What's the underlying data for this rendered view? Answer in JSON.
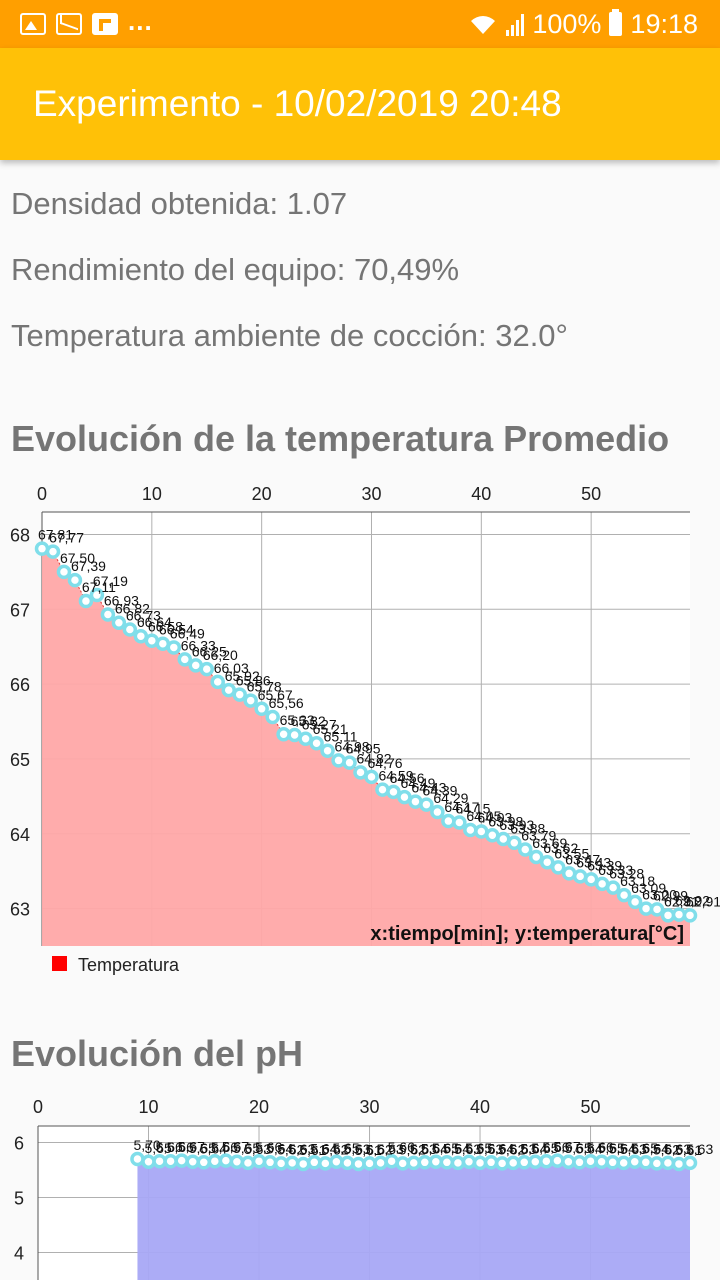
{
  "status_bar": {
    "notification_icons": [
      "image-icon",
      "mail-icon",
      "flipboard-icon"
    ],
    "more": "...",
    "battery": "100%",
    "time": "19:18"
  },
  "app_bar": {
    "title": "Experimento - 10/02/2019 20:48"
  },
  "summary": {
    "density": "Densidad obtenida: 1.07",
    "efficiency": "Rendimiento del equipo: 70,49%",
    "ambient_temp": "Temperatura ambiente de cocción: 32.0°"
  },
  "charts": {
    "temperature_title": "Evolución de la temperatura Promedio",
    "ph_title": "Evolución del pH"
  },
  "chart_data": [
    {
      "type": "area",
      "title": "Evolución de la temperatura Promedio",
      "description": "x:tiempo[min]; y:temperatura[°C]",
      "legend": [
        "Temperatura"
      ],
      "legend_position": "bottom-left",
      "grid": true,
      "xlim": [
        0,
        59
      ],
      "ylim": [
        62.5,
        68.3
      ],
      "x_ticks": [
        0,
        10,
        20,
        30,
        40,
        50
      ],
      "y_ticks": [
        63,
        64,
        65,
        66,
        67,
        68
      ],
      "fill_color": "#ffa8a8",
      "line_color": "#e53935",
      "point_color": "#80deea",
      "series": [
        {
          "name": "Temperatura",
          "x": [
            0,
            1,
            2,
            3,
            4,
            5,
            6,
            7,
            8,
            9,
            10,
            11,
            12,
            13,
            14,
            15,
            16,
            17,
            18,
            19,
            20,
            21,
            22,
            23,
            24,
            25,
            26,
            27,
            28,
            29,
            30,
            31,
            32,
            33,
            34,
            35,
            36,
            37,
            38,
            39,
            40,
            41,
            42,
            43,
            44,
            45,
            46,
            47,
            48,
            49,
            50,
            51,
            52,
            53,
            54,
            55,
            56,
            57,
            58,
            59
          ],
          "values": [
            67.81,
            67.77,
            67.5,
            67.39,
            67.11,
            67.19,
            66.93,
            66.82,
            66.73,
            66.64,
            66.58,
            66.54,
            66.49,
            66.33,
            66.25,
            66.2,
            66.03,
            65.92,
            65.86,
            65.78,
            65.67,
            65.56,
            65.33,
            65.32,
            65.27,
            65.21,
            65.11,
            64.98,
            64.95,
            64.82,
            64.76,
            64.59,
            64.56,
            64.49,
            64.43,
            64.39,
            64.29,
            64.17,
            64.15,
            64.05,
            64.03,
            63.98,
            63.93,
            63.88,
            63.79,
            63.69,
            63.62,
            63.55,
            63.47,
            63.43,
            63.39,
            63.33,
            63.28,
            63.18,
            63.09,
            63.0,
            62.99,
            62.91,
            62.92,
            62.91
          ],
          "labels": [
            "67,81",
            "67,77",
            "67,50",
            "67,39",
            "67,11",
            "67,19",
            "66,93",
            "66,82",
            "66,73",
            "66,64",
            "66,58",
            "66,54",
            "66,49",
            "66,33",
            "66,25",
            "66,20",
            "66,03",
            "65,92",
            "65,86",
            "65,78",
            "65,67",
            "65,56",
            "65,33",
            "65,32",
            "65,27",
            "65,21",
            "65,11",
            "64,98",
            "64,95",
            "64,82",
            "64,76",
            "64,59",
            "64,56",
            "64,49",
            "64,43",
            "64,39",
            "64,29",
            "64,17",
            "64,15",
            "64,05",
            "64,03",
            "63,98",
            "63,93",
            "63,88",
            "63,79",
            "63,69",
            "63,62",
            "63,55",
            "63,47",
            "63,43",
            "63,39",
            "63,33",
            "63,28",
            "63,18",
            "63,09",
            "63,00",
            "62,99",
            "62,91",
            "62,92",
            "62,91"
          ]
        }
      ]
    },
    {
      "type": "area",
      "title": "Evolución del pH",
      "grid": true,
      "xlim": [
        0,
        59
      ],
      "ylim": [
        3.5,
        6.3
      ],
      "x_ticks": [
        0,
        10,
        20,
        30,
        40,
        50
      ],
      "y_ticks": [
        4,
        5,
        6
      ],
      "fill_color": "#a8a8f5",
      "line_color": "#3f51b5",
      "point_color": "#80deea",
      "series": [
        {
          "x": [
            9,
            10,
            11,
            12,
            13,
            14,
            15,
            16,
            17,
            18,
            19,
            20,
            21,
            22,
            23,
            24,
            25,
            26,
            27,
            28,
            29,
            30,
            31,
            32,
            33,
            34,
            35,
            36,
            37,
            38,
            39,
            40,
            41,
            42,
            43,
            44,
            45,
            46,
            47,
            48,
            49,
            50,
            51,
            52,
            53,
            54,
            55,
            56,
            57,
            58,
            59
          ],
          "values": [
            5.7,
            5.65,
            5.66,
            5.66,
            5.67,
            5.65,
            5.64,
            5.66,
            5.67,
            5.65,
            5.63,
            5.66,
            5.64,
            5.62,
            5.63,
            5.61,
            5.64,
            5.62,
            5.65,
            5.63,
            5.61,
            5.62,
            5.63,
            5.66,
            5.62,
            5.63,
            5.64,
            5.65,
            5.64,
            5.63,
            5.65,
            5.63,
            5.64,
            5.62,
            5.63,
            5.64,
            5.65,
            5.66,
            5.67,
            5.65,
            5.64,
            5.66,
            5.65,
            5.64,
            5.63,
            5.65,
            5.64,
            5.62,
            5.63,
            5.61,
            5.63
          ],
          "labels": [
            "5,70",
            "5,65",
            "5,66",
            "5,66",
            "5,67",
            "5,65",
            "5,64",
            "5,66",
            "5,67",
            "5,65",
            "5,63",
            "5,66",
            "5,64",
            "5,62",
            "5,63",
            "5,61",
            "5,64",
            "5,62",
            "5,65",
            "5,63",
            "5,61",
            "5,62",
            "5,63",
            "5,66",
            "5,62",
            "5,63",
            "5,64",
            "5,65",
            "5,64",
            "5,63",
            "5,65",
            "5,63",
            "5,64",
            "5,62",
            "5,63",
            "5,64",
            "5,65",
            "5,66",
            "5,67",
            "5,65",
            "5,64",
            "5,66",
            "5,65",
            "5,64",
            "5,63",
            "5,65",
            "5,64",
            "5,62",
            "5,63",
            "5,61",
            "5,63"
          ]
        }
      ]
    }
  ]
}
